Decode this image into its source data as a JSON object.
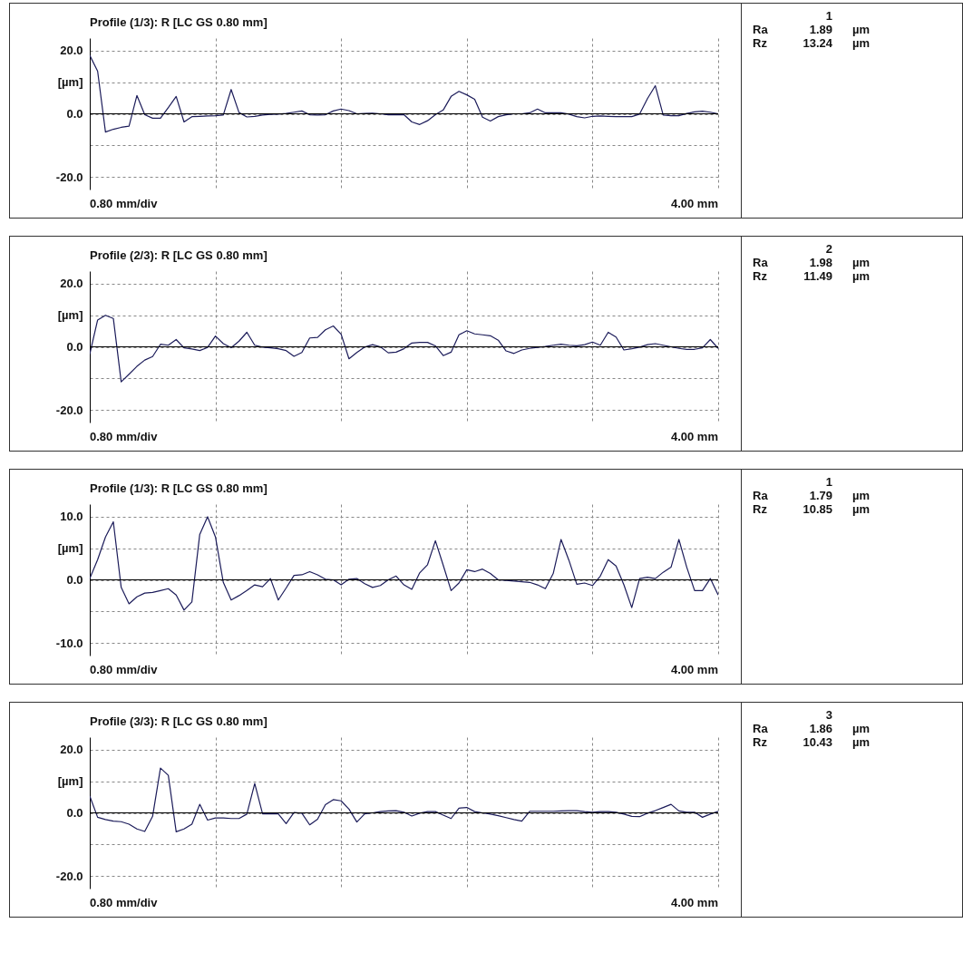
{
  "chart_data": [
    {
      "type": "line",
      "title": "Profile (1/3): R [LC GS 0.80 mm]",
      "ylabel": "[µm]",
      "ylim": [
        -24,
        24
      ],
      "yticks": [
        {
          "value": 20,
          "label": "20.0"
        },
        {
          "value": 10,
          "label": null
        },
        {
          "value": 0,
          "label": "0.0"
        },
        {
          "value": -10,
          "label": null
        },
        {
          "value": -20,
          "label": "-20.0"
        }
      ],
      "grid": true,
      "tick_labels": "y",
      "ref_lines": [
        {
          "axis": "y",
          "value": 0,
          "color": "#000000"
        }
      ],
      "annotations": [
        "0.80 mm/div",
        "4.00 mm"
      ],
      "categories": [
        null,
        null,
        null,
        null,
        null,
        null,
        null,
        null,
        null,
        null,
        null,
        null,
        null,
        null,
        null,
        null,
        null,
        null,
        null,
        null,
        null,
        null,
        null,
        null,
        null,
        null,
        null,
        null,
        null,
        null,
        null,
        null,
        null,
        null,
        null,
        null,
        null,
        null,
        null,
        null,
        null,
        null,
        null,
        null,
        null,
        null,
        null,
        null,
        null,
        null,
        null,
        null,
        null,
        null,
        null,
        null,
        null,
        null,
        null,
        null,
        null,
        null,
        null,
        null,
        null,
        null,
        null,
        null,
        null,
        null,
        null,
        null,
        null,
        null,
        null,
        null,
        null,
        null,
        null,
        null,
        null
      ],
      "series": [
        {
          "color": "#1c1c5a",
          "values": [
            18.5,
            13.5,
            -5.8,
            -4.9,
            -4.3,
            -3.9,
            5.8,
            -0.3,
            -1.4,
            -1.4,
            2.0,
            5.5,
            -2.6,
            -0.9,
            -0.8,
            -0.7,
            -0.6,
            -0.4,
            7.7,
            0.4,
            -1.0,
            -0.8,
            -0.4,
            -0.2,
            -0.1,
            0.1,
            0.5,
            0.9,
            -0.3,
            -0.4,
            -0.3,
            0.9,
            1.5,
            1.0,
            0,
            0.1,
            0.2,
            0,
            -0.3,
            -0.3,
            -0.3,
            -2.6,
            -3.4,
            -2.2,
            -0.3,
            1.2,
            5.5,
            7.1,
            6.0,
            4.6,
            -1.1,
            -2.3,
            -0.9,
            -0.3,
            0,
            0,
            0.3,
            1.5,
            0.3,
            0.3,
            0.3,
            -0.1,
            -0.9,
            -1.3,
            -0.8,
            -0.7,
            -0.8,
            -0.9,
            -0.9,
            -0.9,
            -0.1,
            4.8,
            8.9,
            -0.4,
            -0.6,
            -0.6,
            0.1,
            0.6,
            0.8,
            0.5,
            0
          ]
        }
      ]
    },
    {
      "type": "other",
      "title": "1",
      "annotations": [
        "Ra",
        "1.89",
        "µm",
        "Rz",
        "13.24",
        "µm"
      ]
    },
    {
      "type": "line",
      "title": "Profile (2/3): R [LC GS 0.80 mm]",
      "ylabel": "[µm]",
      "ylim": [
        -24,
        24
      ],
      "yticks": [
        {
          "value": 20,
          "label": "20.0"
        },
        {
          "value": 10,
          "label": null
        },
        {
          "value": 0,
          "label": "0.0"
        },
        {
          "value": -10,
          "label": null
        },
        {
          "value": -20,
          "label": "-20.0"
        }
      ],
      "grid": true,
      "tick_labels": "y",
      "ref_lines": [
        {
          "axis": "y",
          "value": 0,
          "color": "#000000"
        }
      ],
      "annotations": [
        "0.80 mm/div",
        "4.00 mm"
      ],
      "categories": [
        null,
        null,
        null,
        null,
        null,
        null,
        null,
        null,
        null,
        null,
        null,
        null,
        null,
        null,
        null,
        null,
        null,
        null,
        null,
        null,
        null,
        null,
        null,
        null,
        null,
        null,
        null,
        null,
        null,
        null,
        null,
        null,
        null,
        null,
        null,
        null,
        null,
        null,
        null,
        null,
        null,
        null,
        null,
        null,
        null,
        null,
        null,
        null,
        null,
        null,
        null,
        null,
        null,
        null,
        null,
        null,
        null,
        null,
        null,
        null,
        null,
        null,
        null,
        null,
        null,
        null,
        null,
        null,
        null,
        null,
        null,
        null,
        null,
        null,
        null,
        null,
        null,
        null,
        null,
        null,
        null
      ],
      "series": [
        {
          "color": "#1c1c5a",
          "values": [
            -2.3,
            8.5,
            10,
            9.0,
            -11.1,
            -8.7,
            -6.2,
            -4.2,
            -3.1,
            0.8,
            0.5,
            2.3,
            -0.3,
            -0.7,
            -1.2,
            -0.2,
            3.4,
            1.0,
            -0.3,
            1.8,
            4.6,
            0.5,
            -0.1,
            -0.3,
            -0.6,
            -1.2,
            -3.0,
            -1.8,
            2.8,
            3.0,
            5.4,
            6.6,
            4.0,
            -3.8,
            -1.8,
            -0.1,
            0.7,
            0,
            -1.9,
            -1.7,
            -0.6,
            1.2,
            1.4,
            1.4,
            0.3,
            -2.8,
            -1.7,
            3.8,
            5.1,
            4.1,
            3.8,
            3.5,
            2.1,
            -1.3,
            -2.1,
            -1.0,
            -0.5,
            -0.2,
            0.1,
            0.5,
            0.8,
            0.5,
            0.3,
            0.7,
            1.5,
            0.5,
            4.6,
            3.1,
            -1.0,
            -0.6,
            -0.1,
            0.7,
            1.0,
            0.5,
            0,
            -0.5,
            -0.8,
            -0.8,
            -0.3,
            2.3,
            -0.5
          ]
        }
      ]
    },
    {
      "type": "other",
      "title": "2",
      "annotations": [
        "Ra",
        "1.98",
        "µm",
        "Rz",
        "11.49",
        "µm"
      ]
    },
    {
      "type": "line",
      "title": "Profile (1/3): R [LC GS 0.80 mm]",
      "ylabel": "[µm]",
      "ylim": [
        -12,
        12
      ],
      "yticks": [
        {
          "value": 10,
          "label": "10.0"
        },
        {
          "value": 5,
          "label": null
        },
        {
          "value": 0,
          "label": "0.0"
        },
        {
          "value": -5,
          "label": null
        },
        {
          "value": -10,
          "label": "-10.0"
        }
      ],
      "grid": true,
      "tick_labels": "y",
      "ref_lines": [
        {
          "axis": "y",
          "value": 0,
          "color": "#000000"
        }
      ],
      "annotations": [
        "0.80 mm/div",
        "4.00 mm"
      ],
      "categories": [
        null,
        null,
        null,
        null,
        null,
        null,
        null,
        null,
        null,
        null,
        null,
        null,
        null,
        null,
        null,
        null,
        null,
        null,
        null,
        null,
        null,
        null,
        null,
        null,
        null,
        null,
        null,
        null,
        null,
        null,
        null,
        null,
        null,
        null,
        null,
        null,
        null,
        null,
        null,
        null,
        null,
        null,
        null,
        null,
        null,
        null,
        null,
        null,
        null,
        null,
        null,
        null,
        null,
        null,
        null,
        null,
        null,
        null,
        null,
        null,
        null,
        null,
        null,
        null,
        null,
        null,
        null,
        null,
        null,
        null,
        null,
        null,
        null,
        null,
        null,
        null,
        null,
        null,
        null,
        null,
        null
      ],
      "series": [
        {
          "color": "#1c1c5a",
          "values": [
            0.2,
            3.2,
            6.8,
            9.2,
            -1.2,
            -3.8,
            -2.7,
            -2.1,
            -2.0,
            -1.7,
            -1.4,
            -2.4,
            -4.8,
            -3.5,
            7.2,
            10,
            6.8,
            -0.4,
            -3.2,
            -2.5,
            -1.7,
            -0.8,
            -1.1,
            0.2,
            -3.2,
            -1.3,
            0.7,
            0.8,
            1.3,
            0.8,
            0.1,
            0,
            -0.8,
            0.1,
            0.2,
            -0.6,
            -1.2,
            -0.9,
            0,
            0.6,
            -0.8,
            -1.5,
            1.1,
            2.4,
            6.2,
            2.3,
            -1.7,
            -0.5,
            1.6,
            1.3,
            1.7,
            1.0,
            0,
            -0.1,
            -0.2,
            -0.3,
            -0.4,
            -0.8,
            -1.4,
            1.0,
            6.4,
            3.1,
            -0.7,
            -0.5,
            -0.9,
            0.6,
            3.2,
            2.2,
            -0.8,
            -4.4,
            0.2,
            0.4,
            0.2,
            1.2,
            2.0,
            6.4,
            2,
            -1.7,
            -1.7,
            0.2,
            -2.4
          ]
        }
      ]
    },
    {
      "type": "other",
      "title": "1",
      "annotations": [
        "Ra",
        "1.79",
        "µm",
        "Rz",
        "10.85",
        "µm"
      ]
    },
    {
      "type": "line",
      "title": "Profile (3/3): R [LC GS 0.80 mm]",
      "ylabel": "[µm]",
      "ylim": [
        -24,
        24
      ],
      "yticks": [
        {
          "value": 20,
          "label": "20.0"
        },
        {
          "value": 10,
          "label": null
        },
        {
          "value": 0,
          "label": "0.0"
        },
        {
          "value": -10,
          "label": null
        },
        {
          "value": -20,
          "label": "-20.0"
        }
      ],
      "grid": true,
      "tick_labels": "y",
      "ref_lines": [
        {
          "axis": "y",
          "value": 0,
          "color": "#000000"
        }
      ],
      "annotations": [
        "0.80 mm/div",
        "4.00 mm"
      ],
      "categories": [
        null,
        null,
        null,
        null,
        null,
        null,
        null,
        null,
        null,
        null,
        null,
        null,
        null,
        null,
        null,
        null,
        null,
        null,
        null,
        null,
        null,
        null,
        null,
        null,
        null,
        null,
        null,
        null,
        null,
        null,
        null,
        null,
        null,
        null,
        null,
        null,
        null,
        null,
        null,
        null,
        null,
        null,
        null,
        null,
        null,
        null,
        null,
        null,
        null,
        null,
        null,
        null,
        null,
        null,
        null,
        null,
        null,
        null,
        null,
        null,
        null,
        null,
        null,
        null,
        null,
        null,
        null,
        null,
        null,
        null,
        null,
        null,
        null,
        null,
        null,
        null,
        null,
        null,
        null,
        null,
        null
      ],
      "series": [
        {
          "color": "#1c1c5a",
          "values": [
            5.3,
            -1.4,
            -2.1,
            -2.6,
            -2.8,
            -3.6,
            -5.1,
            -5.9,
            -1.1,
            14.2,
            11.9,
            -6,
            -5.1,
            -3.6,
            2.7,
            -2.3,
            -1.6,
            -1.6,
            -1.8,
            -1.8,
            -0.4,
            9.3,
            -0.3,
            -0.3,
            -0.3,
            -3.4,
            0.1,
            -0.1,
            -3.8,
            -2.0,
            2.6,
            4.2,
            3.8,
            1.2,
            -2.9,
            -0.3,
            0,
            0.4,
            0.6,
            0.7,
            0.2,
            -1.0,
            -0.1,
            0.4,
            0.4,
            -0.7,
            -1.8,
            1.5,
            1.7,
            0.4,
            0,
            -0.4,
            -0.9,
            -1.5,
            -2.1,
            -2.6,
            0.5,
            0.5,
            0.5,
            0.5,
            0.6,
            0.7,
            0.7,
            0.4,
            0.2,
            0.4,
            0.4,
            0.2,
            -0.4,
            -1.1,
            -1.2,
            -0.1,
            0.7,
            1.7,
            2.7,
            0.6,
            0.2,
            0.2,
            -1.4,
            -0.4,
            0.5
          ]
        }
      ]
    },
    {
      "type": "other",
      "title": "3",
      "annotations": [
        "Ra",
        "1.86",
        "µm",
        "Rz",
        "10.43",
        "µm"
      ]
    }
  ]
}
